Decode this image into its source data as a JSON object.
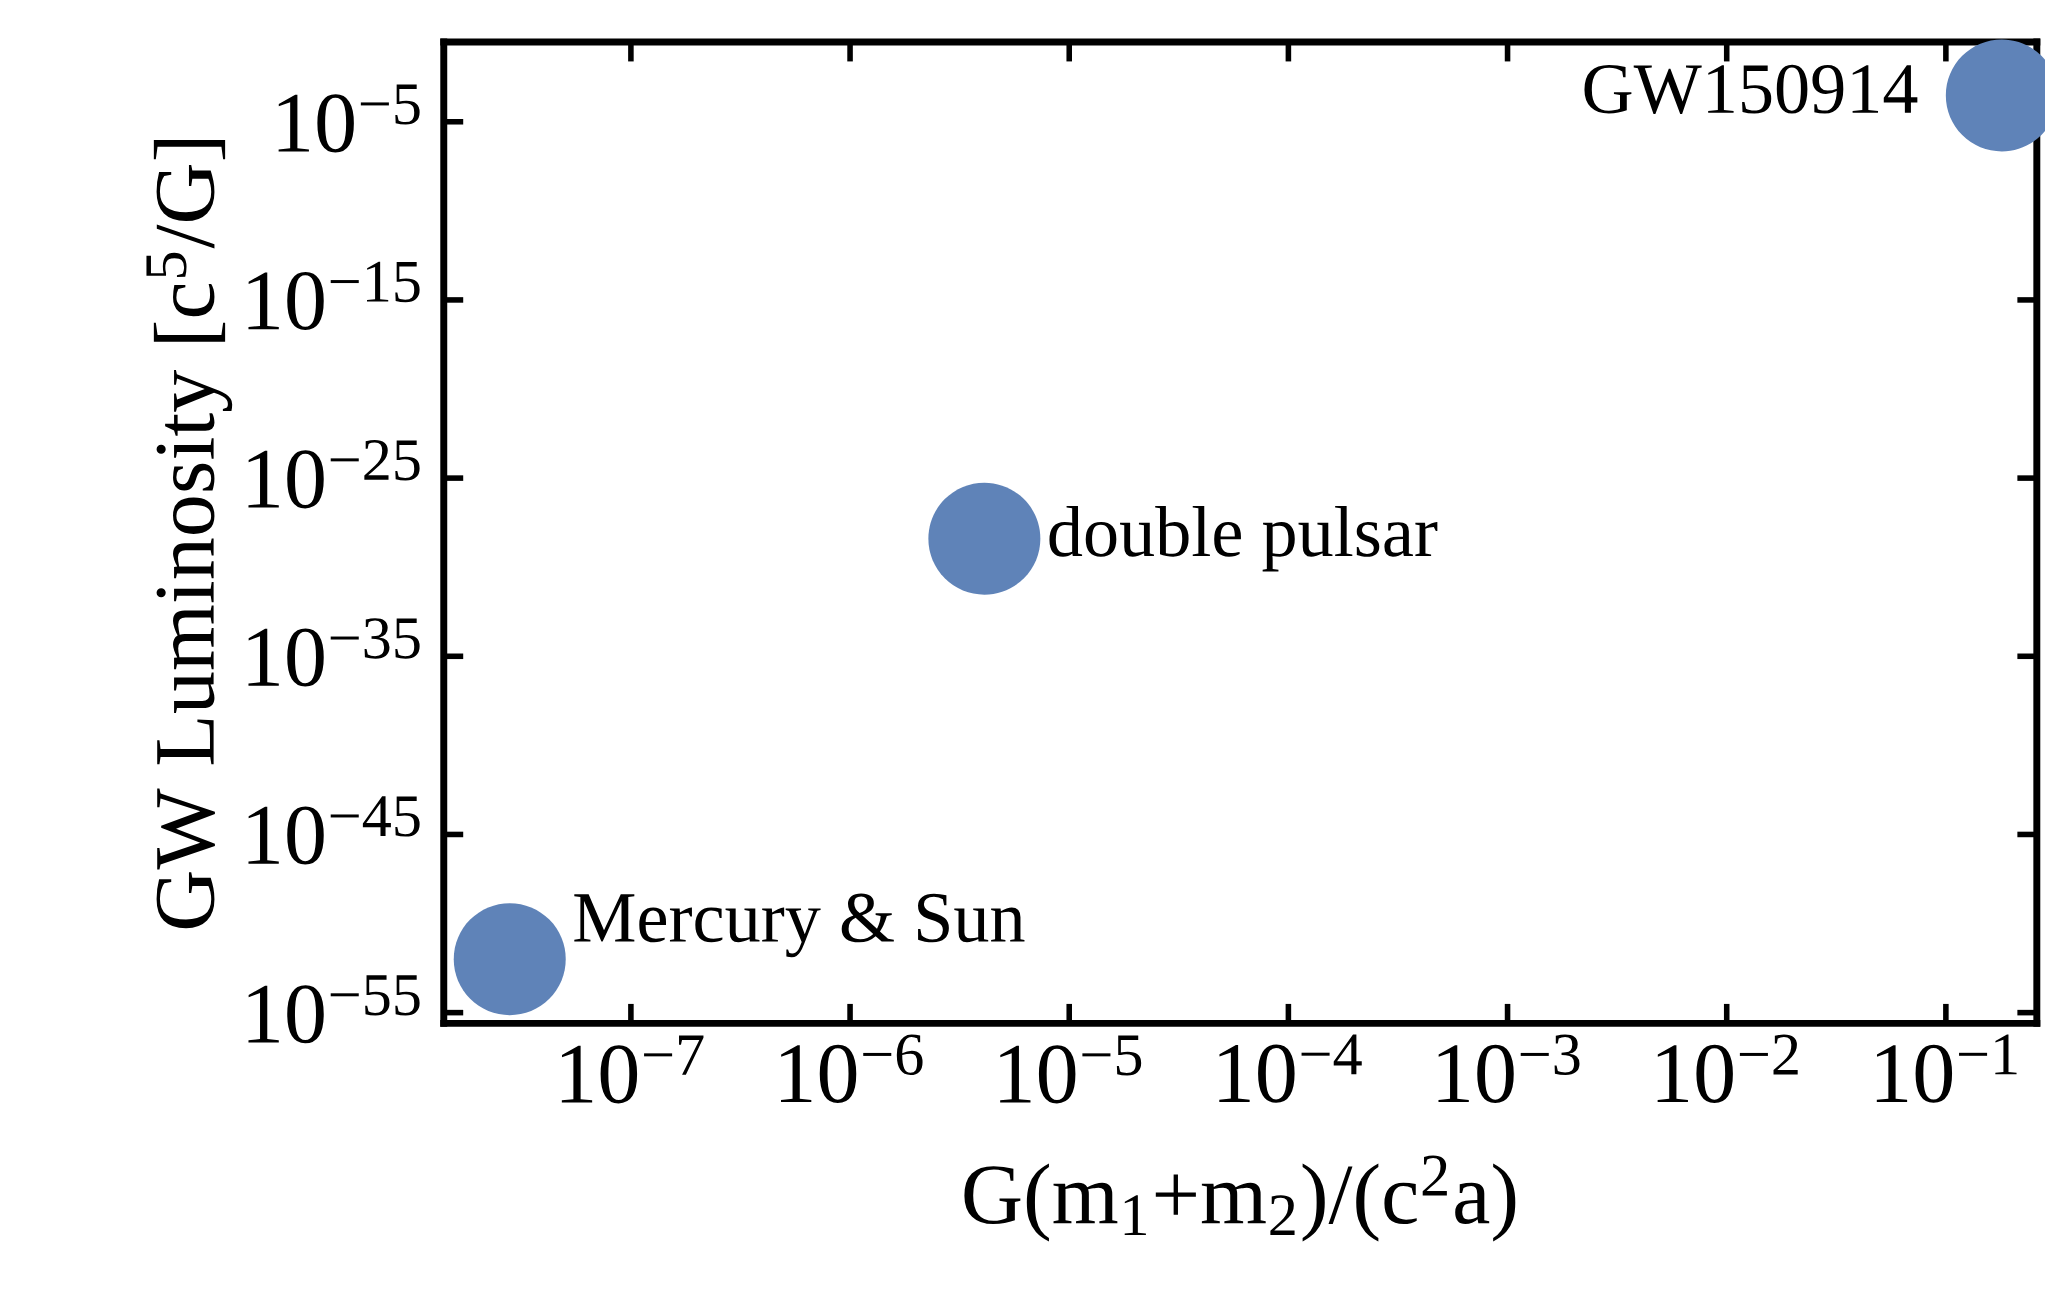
{
  "chart_data": {
    "type": "scatter",
    "xlabel": "G(m$_{1}$+m$_{2}$)/(c$^{2}$a)",
    "ylabel": "GW Luminosity [c$^{5}$/G]",
    "log": "xy",
    "marker": "circle",
    "grid": false,
    "xlim": [
      1.4e-08,
      0.26
    ],
    "ylim": [
      2.5e-56,
      0.3
    ],
    "xticks": [
      {
        "value": 1e-07,
        "label": "10$^{−7}$"
      },
      {
        "value": 1e-06,
        "label": "10$^{−6}$"
      },
      {
        "value": 1e-05,
        "label": "10$^{−5}$"
      },
      {
        "value": 0.0001,
        "label": "10$^{−4}$"
      },
      {
        "value": 0.001,
        "label": "10$^{−3}$"
      },
      {
        "value": 0.01,
        "label": "10$^{−2}$"
      },
      {
        "value": 0.1,
        "label": "10$^{−1}$"
      }
    ],
    "yticks": [
      {
        "value": 1e-55,
        "label": "10$^{−55}$"
      },
      {
        "value": 1e-45,
        "label": "10$^{−45}$"
      },
      {
        "value": 1e-35,
        "label": "10$^{−35}$"
      },
      {
        "value": 1e-25,
        "label": "10$^{−25}$"
      },
      {
        "value": 1e-15,
        "label": "10$^{−15}$"
      },
      {
        "value": 1e-05,
        "label": "10$^{−5}$"
      }
    ],
    "series": [
      {
        "color": "#5f83b8",
        "x": [
          2.8e-08,
          4.1e-06,
          0.18
        ],
        "values": [
          1e-52,
          4e-29,
          0.0003
        ]
      }
    ],
    "annotations": [
      {
        "text": "Mercury & Sun",
        "x": 2.8e-08,
        "y": 1e-52
      },
      {
        "text": "double pulsar",
        "x": 4.1e-06,
        "y": 4e-29
      },
      {
        "text": "GW150914",
        "x": 0.18,
        "y": 0.0003
      }
    ]
  }
}
